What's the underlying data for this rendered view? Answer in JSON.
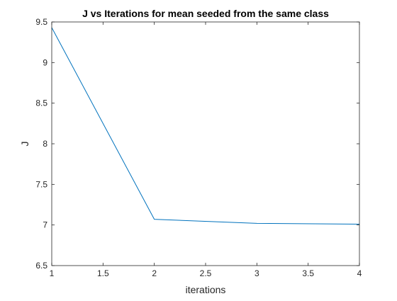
{
  "chart_data": {
    "type": "line",
    "title": "J vs Iterations for mean seeded from the same class",
    "xlabel": "iterations",
    "ylabel": "J",
    "xlim": [
      1,
      4
    ],
    "ylim": [
      6.5,
      9.5
    ],
    "x_ticks": [
      "1",
      "1.5",
      "2",
      "2.5",
      "3",
      "3.5",
      "4"
    ],
    "y_ticks": [
      "6.5",
      "7",
      "7.5",
      "8",
      "8.5",
      "9",
      "9.5"
    ],
    "grid": false,
    "series": [
      {
        "x": [
          1,
          2,
          3,
          4
        ],
        "y": [
          9.43,
          7.07,
          7.02,
          7.01
        ],
        "color": "#0072BD"
      }
    ]
  }
}
